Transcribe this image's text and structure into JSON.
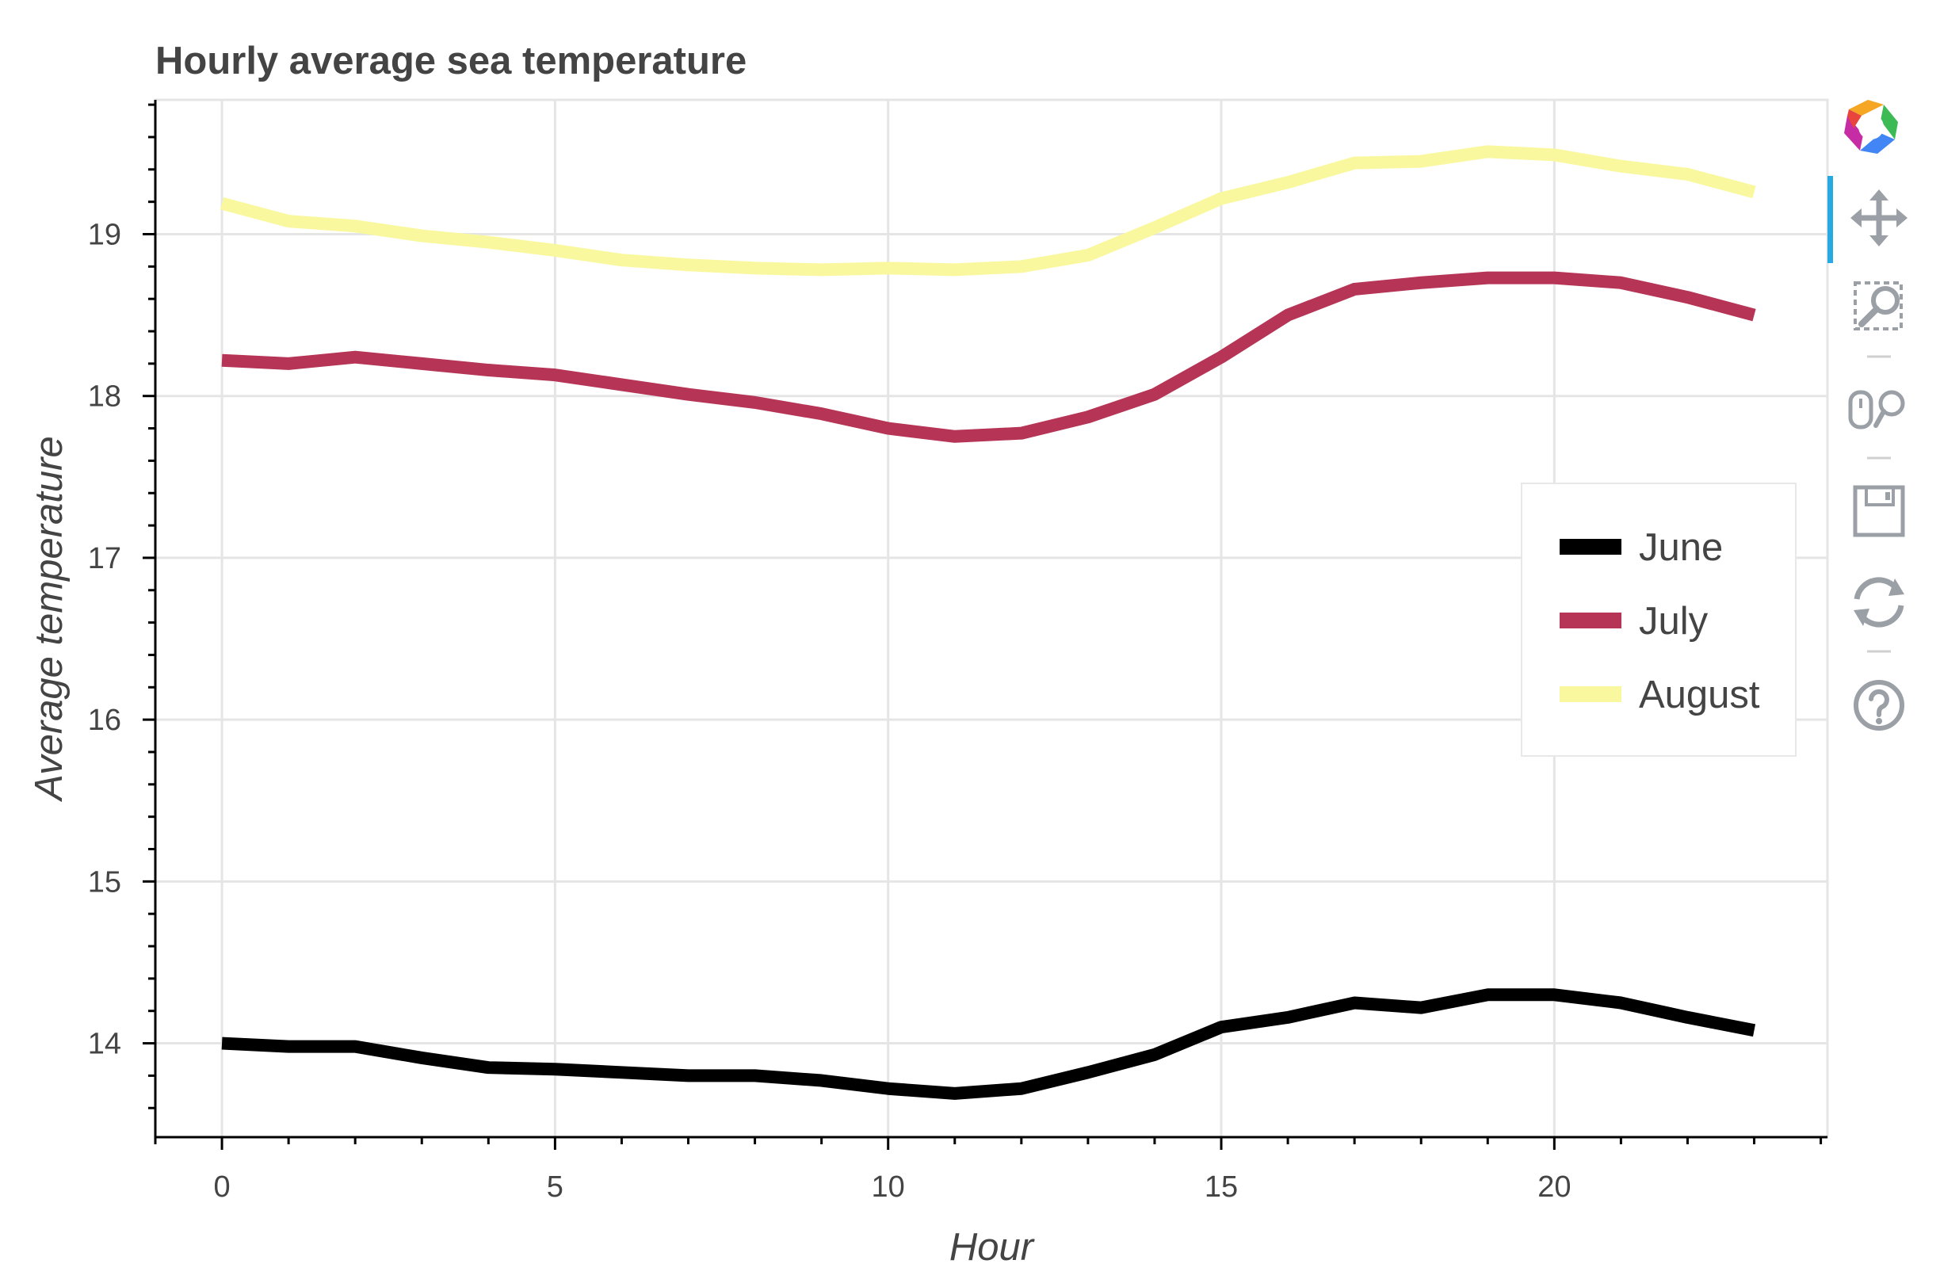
{
  "chart_data": {
    "type": "line",
    "title": "Hourly average sea temperature",
    "xlabel": "Hour",
    "ylabel": "Average temperature",
    "x": [
      0,
      1,
      2,
      3,
      4,
      5,
      6,
      7,
      8,
      9,
      10,
      11,
      12,
      13,
      14,
      15,
      16,
      17,
      18,
      19,
      20,
      21,
      22,
      23
    ],
    "xlim": [
      -1,
      24.1
    ],
    "ylim": [
      13.42,
      19.83
    ],
    "xticks": [
      0,
      5,
      10,
      15,
      20
    ],
    "xtick_labels": [
      "0",
      "5",
      "10",
      "15",
      "20"
    ],
    "yticks": [
      14,
      15,
      16,
      17,
      18,
      19
    ],
    "ytick_labels": [
      "14",
      "15",
      "16",
      "17",
      "18",
      "19"
    ],
    "grid": true,
    "legend_position": "right",
    "series": [
      {
        "name": "June",
        "color": "#000000",
        "values": [
          14.0,
          13.98,
          13.98,
          13.91,
          13.85,
          13.84,
          13.82,
          13.8,
          13.8,
          13.77,
          13.72,
          13.69,
          13.72,
          13.82,
          13.93,
          14.1,
          14.16,
          14.25,
          14.22,
          14.3,
          14.3,
          14.25,
          14.16,
          14.08
        ]
      },
      {
        "name": "July",
        "color": "#b63455",
        "values": [
          18.22,
          18.2,
          18.24,
          18.2,
          18.16,
          18.13,
          18.07,
          18.01,
          17.96,
          17.89,
          17.8,
          17.75,
          17.77,
          17.87,
          18.01,
          18.24,
          18.5,
          18.66,
          18.7,
          18.73,
          18.73,
          18.7,
          18.61,
          18.5
        ]
      },
      {
        "name": "August",
        "color": "#f9f89f",
        "values": [
          19.19,
          19.08,
          19.05,
          18.99,
          18.95,
          18.9,
          18.84,
          18.81,
          18.79,
          18.78,
          18.79,
          18.78,
          18.8,
          18.87,
          19.04,
          19.22,
          19.32,
          19.44,
          19.45,
          19.51,
          19.49,
          19.42,
          19.37,
          19.26
        ]
      }
    ]
  },
  "toolbar": {
    "items": [
      {
        "name": "bokeh-logo-icon",
        "active": false
      },
      {
        "name": "pan-icon",
        "active": true
      },
      {
        "name": "box-zoom-icon",
        "active": false
      },
      {
        "name": "wheel-zoom-icon",
        "active": false
      },
      {
        "name": "save-icon",
        "active": false
      },
      {
        "name": "reset-icon",
        "active": false
      },
      {
        "name": "help-icon",
        "active": false
      }
    ],
    "active_color": "#26aae1",
    "icon_color": "#9aa0a6"
  }
}
